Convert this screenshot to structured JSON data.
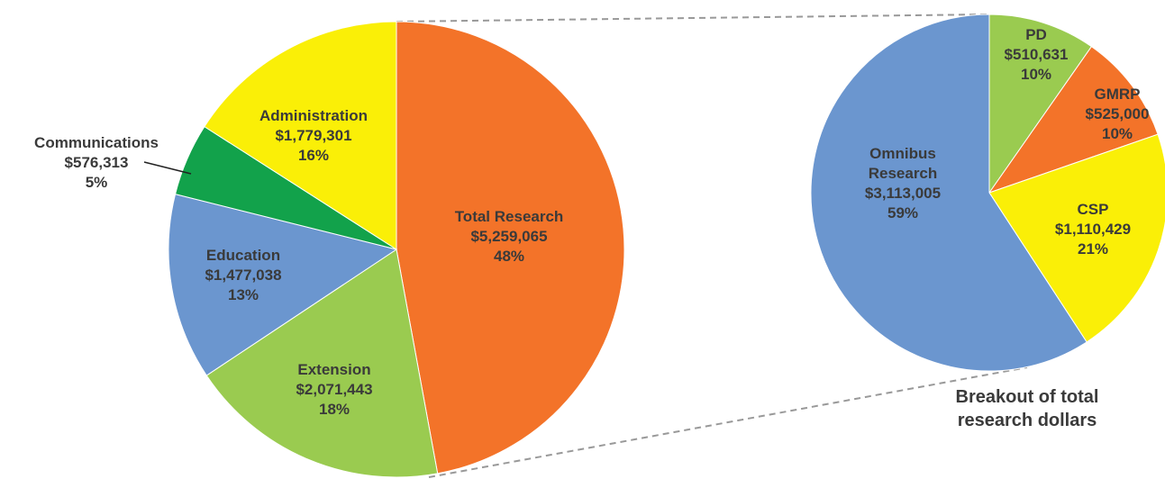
{
  "chart_data": [
    {
      "type": "pie",
      "categories": [
        "Total Research",
        "Extension",
        "Education",
        "Communications",
        "Administration"
      ],
      "values": [
        5259065,
        2071443,
        1477038,
        576313,
        1779301
      ],
      "value_labels": [
        "$5,259,065",
        "$2,071,443",
        "$1,477,038",
        "$576,313",
        "$1,779,301"
      ],
      "percentages": [
        48,
        18,
        13,
        5,
        16
      ],
      "percent_labels": [
        "48%",
        "18%",
        "13%",
        "5%",
        "16%"
      ],
      "colors": [
        "#f37329",
        "#9acb50",
        "#6b96cf",
        "#12a24b",
        "#faef07"
      ]
    },
    {
      "type": "pie",
      "categories": [
        "PD",
        "GMRP",
        "CSP",
        "Omnibus Research"
      ],
      "values": [
        510631,
        525000,
        1110429,
        3113005
      ],
      "value_labels": [
        "$510,631",
        "$525,000",
        "$1,110,429",
        "$3,113,005"
      ],
      "percentages": [
        10,
        10,
        21,
        59
      ],
      "percent_labels": [
        "10%",
        "10%",
        "21%",
        "59%"
      ],
      "colors": [
        "#9acb50",
        "#f37329",
        "#faef07",
        "#6b96cf"
      ],
      "annotation": [
        "Breakout of total",
        "research dollars"
      ]
    }
  ]
}
